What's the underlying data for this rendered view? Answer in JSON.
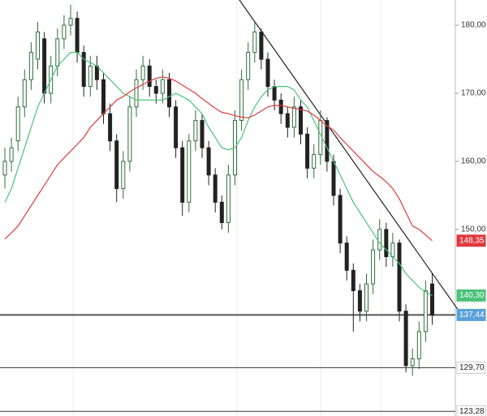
{
  "chart_data": {
    "type": "candlestick",
    "ylim": [
      122.6,
      183.7
    ],
    "yticks": [
      {
        "value": 150,
        "label": "150,00"
      },
      {
        "value": 160,
        "label": "160,00"
      },
      {
        "value": 170,
        "label": "170,00"
      },
      {
        "value": 180,
        "label": "180,00"
      }
    ],
    "grid": false,
    "up_color": "#2f6f3a",
    "down_color": "#222222",
    "open": [
      158,
      160,
      163,
      168,
      172,
      175,
      178,
      170,
      174,
      178,
      180,
      181,
      176,
      171,
      174,
      172,
      167,
      163,
      156,
      160,
      168,
      172,
      174,
      171,
      170,
      172,
      168,
      162,
      154,
      163,
      166,
      162,
      158,
      154,
      151,
      158,
      166,
      172,
      176,
      179,
      175,
      171,
      169,
      167,
      165,
      168,
      164,
      159,
      161,
      166,
      160,
      155,
      148,
      144,
      141,
      138,
      142,
      147,
      150,
      146,
      148,
      138,
      130,
      131,
      135,
      142
    ],
    "high": [
      162,
      163.5,
      169.5,
      173.5,
      177.5,
      180.5,
      179,
      175.5,
      179.5,
      181.5,
      183,
      182,
      177,
      175.5,
      175.5,
      173,
      168.5,
      164,
      161.5,
      169.5,
      173.5,
      175.5,
      175,
      172,
      173.5,
      173,
      169,
      163,
      164,
      167.5,
      167,
      163,
      159,
      155,
      159.5,
      167.5,
      173.5,
      177.5,
      180.5,
      179.5,
      176,
      172,
      170,
      168,
      169.5,
      169,
      165,
      162.5,
      167.5,
      166.5,
      161,
      156,
      149,
      145,
      142,
      143.5,
      148.5,
      151.5,
      151,
      149.5,
      148.5,
      139,
      132.5,
      136.5,
      142.5,
      143.5
    ],
    "low": [
      156,
      158.5,
      161.5,
      166.5,
      170.5,
      173.5,
      168.5,
      168.5,
      172.5,
      176.5,
      178.5,
      174.5,
      169.5,
      169.5,
      170.5,
      165.5,
      161.5,
      154,
      154.5,
      158.5,
      166.5,
      170.5,
      169.5,
      168.5,
      168.5,
      166.5,
      160.5,
      152,
      152.5,
      161.5,
      160.5,
      156.5,
      152.5,
      150,
      149.5,
      156.5,
      164.5,
      170.5,
      174.5,
      173.5,
      169.5,
      167.5,
      165.5,
      163.5,
      163.5,
      162.5,
      157.5,
      157.5,
      159.5,
      158.5,
      153.5,
      146.5,
      142.5,
      135,
      136.5,
      136.5,
      140.5,
      145.5,
      144.5,
      144.5,
      136.5,
      129,
      128.5,
      129.5,
      133.5,
      136
    ],
    "close": [
      160,
      162,
      168,
      172,
      176,
      179,
      170,
      174,
      178,
      180,
      181,
      176,
      171,
      174,
      172,
      167,
      163,
      156,
      160,
      168,
      172,
      174,
      171,
      170,
      172,
      168,
      162,
      154,
      163,
      166,
      162,
      158,
      154,
      151,
      158,
      166,
      172,
      176,
      179,
      175,
      171,
      169,
      167,
      165,
      168,
      164,
      159,
      161,
      166,
      160,
      155,
      148,
      144,
      141,
      138,
      142,
      147,
      150,
      146,
      148,
      138,
      130,
      131,
      135,
      141,
      137.44
    ],
    "series": [
      {
        "color": "#4cc27a",
        "values": [
          154,
          156,
          159,
          162,
          165,
          168,
          170,
          172,
          174,
          175,
          176,
          176,
          175,
          174.5,
          174,
          173,
          172,
          171,
          170,
          169.5,
          169,
          169,
          169,
          169,
          169,
          169.5,
          170,
          169.5,
          169,
          168,
          167,
          165,
          163.5,
          162,
          161.7,
          162,
          163.5,
          166,
          168,
          169.5,
          170.5,
          171,
          171,
          171,
          170.5,
          169,
          168,
          166,
          164,
          162,
          160,
          158,
          156,
          154,
          152.5,
          151,
          149.5,
          148,
          147,
          146,
          145,
          143.5,
          142.5,
          141.5,
          140.8,
          140.3
        ]
      },
      {
        "color": "#e0393e",
        "values": [
          148.6,
          149.5,
          150.5,
          152,
          153.5,
          155,
          156.5,
          158,
          159.5,
          160.5,
          161.5,
          162.5,
          163.5,
          165,
          166,
          167,
          168,
          169,
          169.5,
          170.2,
          170.8,
          171.3,
          171.8,
          172.2,
          172.4,
          172.2,
          171.8,
          171.2,
          170.6,
          170,
          169.2,
          168.5,
          167.8,
          167.2,
          167,
          166.7,
          166.5,
          166.4,
          166.8,
          167.4,
          168,
          168.2,
          168.2,
          168,
          167.8,
          167.6,
          167.4,
          166.8,
          166,
          165.2,
          164.6,
          163.5,
          162.5,
          161.5,
          160.5,
          159.5,
          158.5,
          157.8,
          157,
          156,
          154.5,
          152.5,
          150.5,
          150,
          149.2,
          148.35
        ]
      }
    ],
    "price_tags": [
      {
        "value": 148.35,
        "label": "148,35",
        "color": "#e0393e",
        "line": false
      },
      {
        "value": 140.3,
        "label": "140,30",
        "color": "#4cc27a",
        "line": false
      },
      {
        "value": 137.44,
        "label": "137,44",
        "color": "#5aa0d8",
        "line": true
      },
      {
        "value": 129.7,
        "label": "129,70",
        "color": "#ffffff",
        "line": true
      },
      {
        "value": 123.28,
        "label": "123,28",
        "color": "#ffffff",
        "line": true
      }
    ]
  }
}
